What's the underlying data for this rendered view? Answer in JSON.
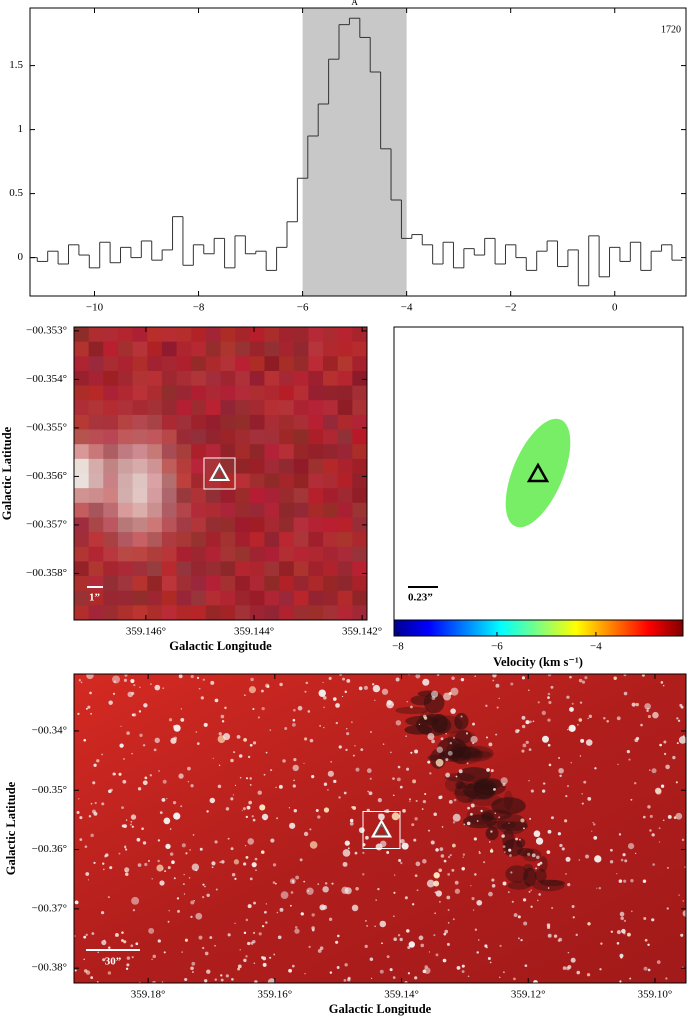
{
  "chart_data": [
    {
      "type": "step",
      "x": [
        -11.2,
        -11.0,
        -10.8,
        -10.6,
        -10.4,
        -10.2,
        -10.0,
        -9.8,
        -9.6,
        -9.4,
        -9.2,
        -9.0,
        -8.8,
        -8.6,
        -8.4,
        -8.2,
        -8.0,
        -7.8,
        -7.6,
        -7.4,
        -7.2,
        -7.0,
        -6.8,
        -6.6,
        -6.4,
        -6.2,
        -6.0,
        -5.8,
        -5.6,
        -5.4,
        -5.2,
        -5.0,
        -4.8,
        -4.6,
        -4.4,
        -4.2,
        -4.0,
        -3.8,
        -3.6,
        -3.4,
        -3.2,
        -3.0,
        -2.8,
        -2.6,
        -2.4,
        -2.2,
        -2.0,
        -1.8,
        -1.6,
        -1.4,
        -1.2,
        -1.0,
        -0.8,
        -0.6,
        -0.4,
        -0.2,
        0.0,
        0.2,
        0.4,
        0.6,
        0.8,
        1.0,
        1.2
      ],
      "values": [
        0.0,
        -0.03,
        0.05,
        -0.05,
        0.1,
        0.02,
        -0.08,
        0.12,
        -0.04,
        0.08,
        0.0,
        0.13,
        -0.02,
        0.06,
        0.32,
        -0.06,
        0.1,
        0.03,
        0.15,
        -0.08,
        0.17,
        0.03,
        0.05,
        -0.1,
        0.08,
        0.28,
        0.62,
        0.95,
        1.2,
        1.55,
        1.82,
        1.87,
        1.72,
        1.45,
        0.85,
        0.45,
        0.15,
        0.18,
        0.1,
        -0.05,
        0.12,
        -0.08,
        0.07,
        0.02,
        0.15,
        -0.05,
        0.1,
        0.0,
        -0.1,
        0.05,
        0.13,
        -0.07,
        0.06,
        -0.22,
        0.17,
        -0.15,
        0.08,
        -0.03,
        0.12,
        -0.1,
        0.05,
        0.1,
        -0.02
      ],
      "color": "#333333",
      "xlim": [
        -11.24,
        1.37
      ],
      "ylim": [
        -0.3,
        1.95
      ],
      "xticks": [
        {
          "value": -10,
          "label": "−10"
        },
        {
          "value": -8,
          "label": "−8"
        },
        {
          "value": -6,
          "label": "−6"
        },
        {
          "value": -4,
          "label": "−4"
        },
        {
          "value": -2,
          "label": "−2"
        },
        0
      ],
      "yticks": [
        0,
        0.5,
        1,
        1.5
      ],
      "shade": {
        "from": -6,
        "to": -4,
        "label": "A",
        "color": "#c8c8c8"
      },
      "annotation": "1720"
    },
    {
      "type": "image",
      "xlabel": "Galactic Longitude",
      "ylabel": "Galactic Latitude",
      "xlim": [
        359.14733,
        359.14191
      ],
      "ylim": [
        -0.35896,
        -0.35292
      ],
      "xticks": [
        {
          "value": 359.146,
          "label": "359.146°"
        },
        {
          "value": 359.144,
          "label": "359.144°"
        },
        {
          "value": 359.142,
          "label": "359.142°"
        }
      ],
      "yticks": [
        {
          "value": -0.353,
          "label": "−00.353°"
        },
        {
          "value": -0.354,
          "label": "−00.354°"
        },
        {
          "value": -0.355,
          "label": "−00.355°"
        },
        {
          "value": -0.356,
          "label": "−00.356°"
        },
        {
          "value": -0.357,
          "label": "−00.357°"
        },
        {
          "value": -0.358,
          "label": "−00.358°"
        }
      ],
      "scale_bar": "1”"
    },
    {
      "type": "ellipse",
      "color": "#77ee66",
      "scale_bar": "0.23”",
      "colorbar": {
        "label": "Velocity (km s⁻¹)",
        "lim": [
          -8.08,
          -2.24
        ],
        "ticks": [
          {
            "value": -8,
            "label": "−8"
          },
          {
            "value": -6,
            "label": "−6"
          },
          {
            "value": -4,
            "label": "−4"
          }
        ]
      }
    },
    {
      "type": "image",
      "xlabel": "Galactic Longitude",
      "ylabel": "Galactic Latitude",
      "xlim": [
        359.1917,
        359.0951
      ],
      "ylim": [
        -0.3825,
        -0.3304
      ],
      "xticks": [
        {
          "value": 359.18,
          "label": "359.18°"
        },
        {
          "value": 359.16,
          "label": "359.16°"
        },
        {
          "value": 359.14,
          "label": "359.14°"
        },
        {
          "value": 359.12,
          "label": "359.12°"
        },
        {
          "value": 359.1,
          "label": "359.10°"
        }
      ],
      "yticks": [
        {
          "value": -0.34,
          "label": "−00.34°"
        },
        {
          "value": -0.35,
          "label": "−00.35°"
        },
        {
          "value": -0.36,
          "label": "−00.36°"
        },
        {
          "value": -0.37,
          "label": "−00.37°"
        },
        {
          "value": -0.38,
          "label": "−00.38°"
        }
      ],
      "scale_bar": "30”"
    }
  ]
}
